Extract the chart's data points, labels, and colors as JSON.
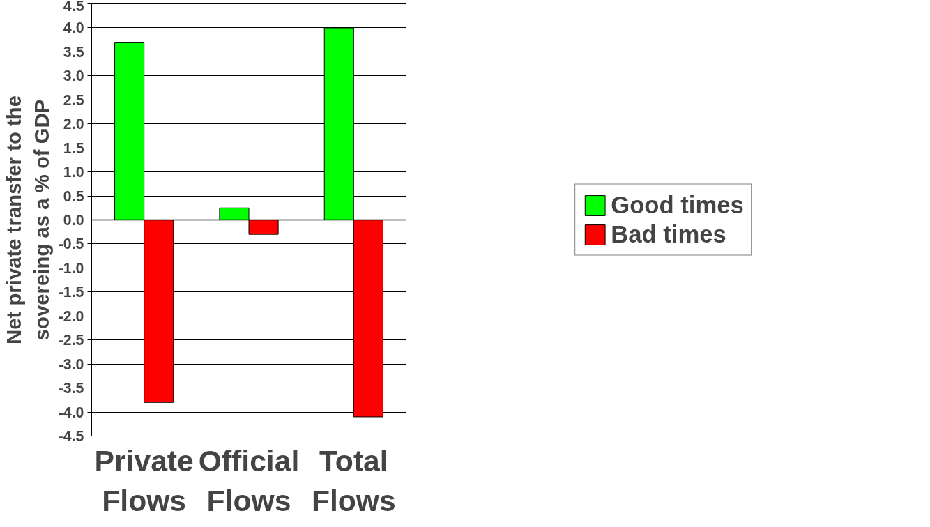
{
  "chart_data": {
    "type": "bar",
    "ylabel": "Net private transfer to the\nsovereing as a % of GDP",
    "categories": [
      "Private\nFlows",
      "Official\nFlows",
      "Total\nFlows"
    ],
    "series": [
      {
        "name": "Good times",
        "color": "#00ff00",
        "values": [
          3.7,
          0.25,
          4.0
        ]
      },
      {
        "name": "Bad times",
        "color": "#ff0000",
        "values": [
          -3.8,
          -0.3,
          -4.1
        ]
      }
    ],
    "ylim": [
      -4.5,
      4.5
    ],
    "yticks": [
      {
        "value": -4.5,
        "label": "-4.5"
      },
      {
        "value": -4,
        "label": "-4.0"
      },
      {
        "value": -3.5,
        "label": "-3.5"
      },
      {
        "value": -3,
        "label": "-3.0"
      },
      {
        "value": -2.5,
        "label": "-2.5"
      },
      {
        "value": -2,
        "label": "-2.0"
      },
      {
        "value": -1.5,
        "label": "-1.5"
      },
      {
        "value": -1,
        "label": "-1.0"
      },
      {
        "value": -0.5,
        "label": "-0.5"
      },
      {
        "value": 0,
        "label": "0.0"
      },
      {
        "value": 0.5,
        "label": "0.5"
      },
      {
        "value": 1,
        "label": "1.0"
      },
      {
        "value": 1.5,
        "label": "1.5"
      },
      {
        "value": 2,
        "label": "2.0"
      },
      {
        "value": 2.5,
        "label": "2.5"
      },
      {
        "value": 3,
        "label": "3.0"
      },
      {
        "value": 3.5,
        "label": "3.5"
      },
      {
        "value": 4,
        "label": "4.0"
      },
      {
        "value": 4.5,
        "label": "4.5"
      }
    ],
    "grid": "y",
    "legend": "right"
  }
}
